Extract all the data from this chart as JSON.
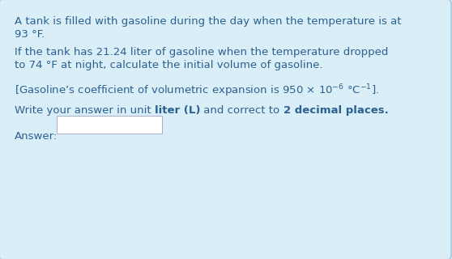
{
  "bg_color": "#daeef8",
  "inner_bg_color": "#daeef8",
  "answer_box_color": "#ffffff",
  "text_color": "#2b6090",
  "line1": "A tank is filled with gasoline during the day when the temperature is at",
  "line2": "93 °F.",
  "line3": "If the tank has 21.24 liter of gasoline when the temperature dropped",
  "line4": "to 74 °F at night, calculate the initial volume of gasoline.",
  "line5": "[Gasoline’s coefficient of volumetric expansion is 950 × 10$^{-6}$ °C$^{-1}$].",
  "line6_pre": "Write your answer in unit ",
  "line6_bold": "liter (L)",
  "line6_mid": " and correct to ",
  "line6_bold2": "2 decimal places.",
  "answer_label": "Answer:",
  "font_size_main": 9.5,
  "border_color": "#b0cfe0"
}
